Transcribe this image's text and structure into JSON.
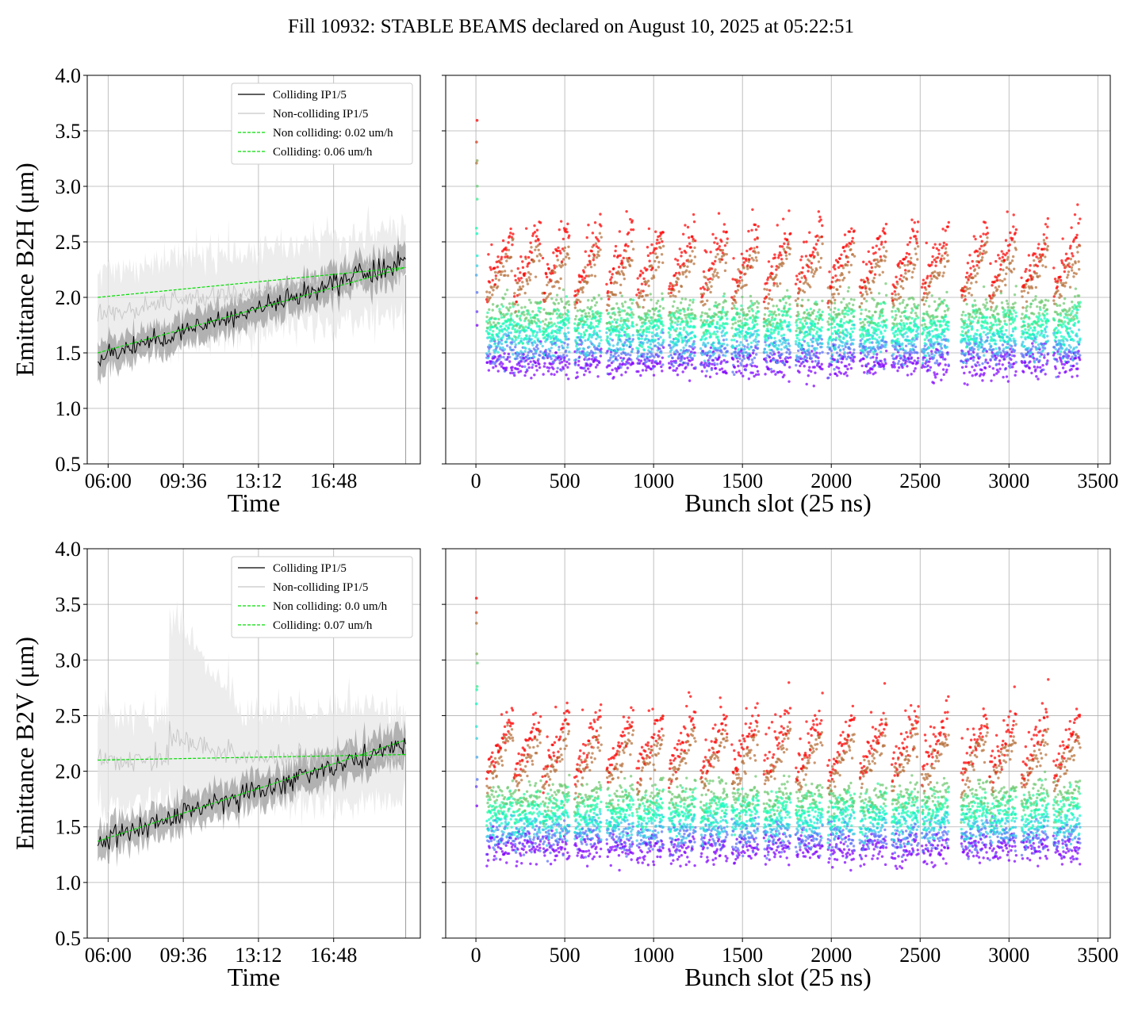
{
  "suptitle": "Fill 10932: STABLE BEAMS declared on August 10, 2025 at 05:22:51",
  "colors": {
    "colliding": "#000000",
    "non_colliding": "#b0b0b0",
    "colliding_band": "#808080",
    "non_colliding_band": "#e6e6e6",
    "fit": "#00dd00",
    "grid": "#b0b0b0",
    "scatter_colormap": "rainbow"
  },
  "chart_data": [
    {
      "type": "line",
      "ylabel": "Emittance B2H (μm)",
      "xlabel": "Time",
      "ylim": [
        0.5,
        4.0
      ],
      "yticks": [
        "0.5",
        "1.0",
        "1.5",
        "2.0",
        "2.5",
        "3.0",
        "3.5",
        "4.0"
      ],
      "xlim_hours": [
        5.0,
        20.95
      ],
      "xticks": [
        "06:00",
        "09:36",
        "13:12",
        "16:48"
      ],
      "grid": true,
      "legend": "top-right",
      "series": [
        {
          "name": "Colliding IP1/5",
          "kind": "mean",
          "start": 1.45,
          "end": 2.33,
          "band": 0.12
        },
        {
          "name": "Non-colliding IP1/5",
          "kind": "mean",
          "start": 1.85,
          "end": 2.25,
          "band": 0.32
        },
        {
          "name": "Non colliding: 0.02 um/h",
          "kind": "fit",
          "start": 2.0,
          "end": 2.27
        },
        {
          "name": "Colliding: 0.06 um/h",
          "kind": "fit",
          "start": 1.5,
          "end": 2.27
        }
      ]
    },
    {
      "type": "scatter",
      "ylabel": "",
      "xlabel": "Bunch slot (25 ns)",
      "xlim": [
        -170,
        3570
      ],
      "ylim": [
        0.5,
        4.0
      ],
      "xticks": [
        0,
        500,
        1000,
        1500,
        2000,
        2500,
        3000,
        3500
      ],
      "grid": true,
      "colormap": "rainbow",
      "train_starts": [
        60,
        215,
        375,
        555,
        735,
        905,
        1085,
        1265,
        1440,
        1620,
        1800,
        1980,
        2160,
        2340,
        2510,
        2730,
        2890,
        3070,
        3250
      ],
      "train_length": 150,
      "band_low": 1.4,
      "band_high": 2.55
    },
    {
      "type": "line",
      "ylabel": "Emittance B2V (μm)",
      "xlabel": "Time",
      "ylim": [
        0.5,
        4.0
      ],
      "yticks": [
        "0.5",
        "1.0",
        "1.5",
        "2.0",
        "2.5",
        "3.0",
        "3.5",
        "4.0"
      ],
      "xlim_hours": [
        5.0,
        20.95
      ],
      "xticks": [
        "06:00",
        "09:36",
        "13:12",
        "16:48"
      ],
      "grid": true,
      "legend": "top-right",
      "series": [
        {
          "name": "Colliding IP1/5",
          "kind": "mean",
          "start": 1.37,
          "end": 2.25,
          "band": 0.12
        },
        {
          "name": "Non-colliding IP1/5",
          "kind": "mean",
          "start": 2.1,
          "end": 2.15,
          "band": 0.35
        },
        {
          "name": "Non colliding: 0.0 um/h",
          "kind": "fit",
          "start": 2.1,
          "end": 2.15
        },
        {
          "name": "Colliding: 0.07 um/h",
          "kind": "fit",
          "start": 1.37,
          "end": 2.28
        }
      ]
    },
    {
      "type": "scatter",
      "ylabel": "",
      "xlabel": "Bunch slot (25 ns)",
      "xlim": [
        -170,
        3570
      ],
      "ylim": [
        0.5,
        4.0
      ],
      "xticks": [
        0,
        500,
        1000,
        1500,
        2000,
        2500,
        3000,
        3500
      ],
      "grid": true,
      "colormap": "rainbow",
      "train_starts": [
        60,
        215,
        375,
        555,
        735,
        905,
        1085,
        1265,
        1440,
        1620,
        1800,
        1980,
        2160,
        2340,
        2510,
        2730,
        2890,
        3070,
        3250
      ],
      "train_length": 150,
      "band_low": 1.3,
      "band_high": 2.45
    }
  ]
}
